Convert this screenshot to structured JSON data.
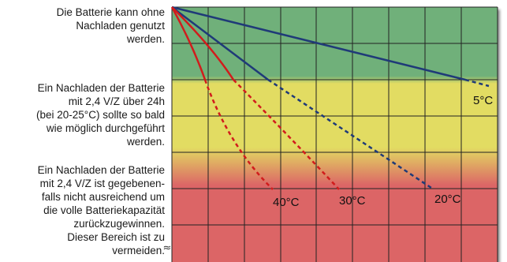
{
  "zones": [
    {
      "id": "green",
      "color": "#6fb07a",
      "text": "Die Batterie kann ohne\nNachladen genutzt\nwerden."
    },
    {
      "id": "yellow",
      "color": "#e2dc62",
      "text": "Ein Nachladen der Batterie\nmit 2,4 V/Z über 24h\n(bei 20-25°C) sollte so bald\nwie möglich durchgeführt\nwerden."
    },
    {
      "id": "red",
      "color": "#dc6566",
      "text": "Ein Nachladen der Batterie\nmit 2,4 V/Z ist gegebenen-\nfalls nicht ausreichend um\ndie volle Batteriekapazität\nzurückzugewinnen.\nDieser Bereich ist zu\nvermeiden."
    }
  ],
  "break_symbol": "≈",
  "curves": [
    {
      "label": "5°C",
      "color": "#1f3a78"
    },
    {
      "label": "20°C",
      "color": "#1f3a78"
    },
    {
      "label": "30°C",
      "color": "#d11c1c"
    },
    {
      "label": "40°C",
      "color": "#d11c1c"
    }
  ]
}
